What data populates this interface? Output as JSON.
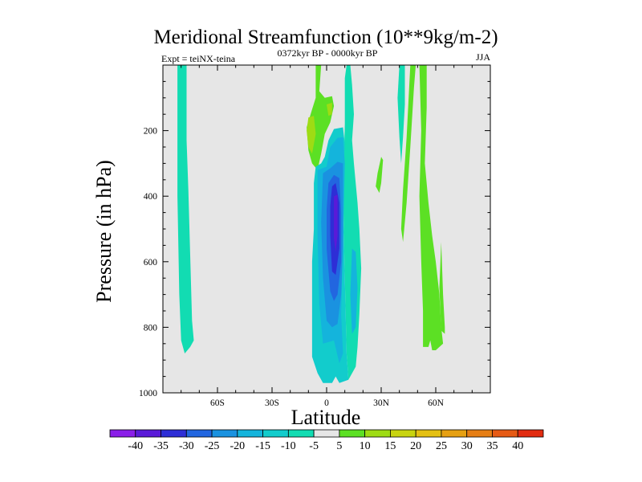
{
  "chart_data": {
    "type": "filled-contour",
    "title": "Meridional Streamfunction (10**9kg/m-2)",
    "left_label": "Expt = teiNX-teina",
    "center_label": "0372kyr BP - 0000kyr BP",
    "right_label": "JJA",
    "xlabel": "Latitude",
    "ylabel": "Pressure (in hPa)",
    "xlim": [
      -90,
      90
    ],
    "ylim": [
      1000,
      0
    ],
    "x_ticks": [
      {
        "value": -60,
        "label": "60S"
      },
      {
        "value": -30,
        "label": "30S"
      },
      {
        "value": 0,
        "label": "0"
      },
      {
        "value": 30,
        "label": "30N"
      },
      {
        "value": 60,
        "label": "60N"
      }
    ],
    "y_ticks": [
      {
        "value": 200,
        "label": "200"
      },
      {
        "value": 400,
        "label": "400"
      },
      {
        "value": 600,
        "label": "600"
      },
      {
        "value": 800,
        "label": "800"
      },
      {
        "value": 1000,
        "label": "1000"
      }
    ],
    "colorbar": {
      "levels": [
        -40,
        -35,
        -30,
        -25,
        -20,
        -15,
        -10,
        -5,
        5,
        10,
        15,
        20,
        25,
        30,
        35,
        40
      ],
      "labels": [
        "-40",
        "-35",
        "-30",
        "-25",
        "-20",
        "-15",
        "-10",
        "-5",
        "5",
        "10",
        "15",
        "20",
        "25",
        "30",
        "35",
        "40"
      ],
      "colors": [
        "#8a1ee8",
        "#5a1ad8",
        "#2e2ed6",
        "#2266e0",
        "#1a92e0",
        "#14b4dc",
        "#12cccc",
        "#12dcb2",
        "#e6e6e6",
        "#5ce024",
        "#9edc14",
        "#c8d410",
        "#e4c012",
        "#e6a012",
        "#e67e14",
        "#e65a14",
        "#e22c10"
      ]
    },
    "background_color": "#e6e6e6",
    "regions": [
      {
        "name": "sh-polar-band",
        "class": "-5",
        "points": [
          [
            -82,
            0
          ],
          [
            -77,
            0
          ],
          [
            -77,
            230
          ],
          [
            -76,
            380
          ],
          [
            -75,
            580
          ],
          [
            -74,
            780
          ],
          [
            -73,
            840
          ],
          [
            -75,
            860
          ],
          [
            -78,
            880
          ],
          [
            -80,
            840
          ],
          [
            -81,
            700
          ],
          [
            -82,
            400
          ]
        ]
      },
      {
        "name": "nh-tropical-band",
        "class": "-5",
        "points": [
          [
            11,
            0
          ],
          [
            13,
            0
          ],
          [
            14,
            60
          ],
          [
            15,
            150
          ],
          [
            14,
            230
          ],
          [
            15,
            300
          ],
          [
            17,
            420
          ],
          [
            18,
            500
          ],
          [
            19,
            620
          ],
          [
            18,
            760
          ],
          [
            17,
            860
          ],
          [
            16,
            920
          ],
          [
            12,
            960
          ],
          [
            11,
            880
          ],
          [
            10,
            650
          ],
          [
            9,
            380
          ],
          [
            10,
            180
          ],
          [
            10,
            40
          ]
        ]
      },
      {
        "name": "nh-40n-band",
        "class": "-5",
        "points": [
          [
            40,
            0
          ],
          [
            43,
            0
          ],
          [
            43,
            120
          ],
          [
            42,
            220
          ],
          [
            41,
            300
          ],
          [
            40,
            220
          ],
          [
            39,
            100
          ]
        ]
      },
      {
        "name": "upper-positive-cell",
        "class": "5",
        "points": [
          [
            -6,
            0
          ],
          [
            -3,
            0
          ],
          [
            -4,
            80
          ],
          [
            -1,
            100
          ],
          [
            3,
            95
          ],
          [
            4,
            125
          ],
          [
            2,
            175
          ],
          [
            -1,
            210
          ],
          [
            -3,
            270
          ],
          [
            -5,
            320
          ],
          [
            -8,
            300
          ],
          [
            -10,
            260
          ],
          [
            -11,
            190
          ],
          [
            -8,
            135
          ],
          [
            -6,
            100
          ]
        ]
      },
      {
        "name": "upper-positive-core",
        "class": "10",
        "points": [
          [
            -10,
            160
          ],
          [
            -7,
            155
          ],
          [
            -6,
            210
          ],
          [
            -8,
            270
          ],
          [
            -10,
            250
          ],
          [
            -11,
            200
          ]
        ]
      },
      {
        "name": "small-positive-patch",
        "class": "10",
        "points": [
          [
            0,
            120
          ],
          [
            3,
            115
          ],
          [
            3,
            150
          ],
          [
            1,
            155
          ]
        ]
      },
      {
        "name": "main-negative-cell",
        "class": "-10",
        "points": [
          [
            -8,
            780
          ],
          [
            -8,
            600
          ],
          [
            -7,
            500
          ],
          [
            -7,
            360
          ],
          [
            -6,
            310
          ],
          [
            -3,
            300
          ],
          [
            -1,
            280
          ],
          [
            1,
            230
          ],
          [
            4,
            195
          ],
          [
            9,
            190
          ],
          [
            10,
            240
          ],
          [
            9,
            380
          ],
          [
            10,
            650
          ],
          [
            11,
            880
          ],
          [
            12,
            960
          ],
          [
            7,
            970
          ],
          [
            5,
            950
          ],
          [
            3,
            970
          ],
          [
            -2,
            970
          ],
          [
            -5,
            940
          ],
          [
            -8,
            890
          ]
        ]
      },
      {
        "name": "negative-cell-15",
        "class": "-15",
        "points": [
          [
            -5,
            320
          ],
          [
            0,
            310
          ],
          [
            2,
            250
          ],
          [
            6,
            222
          ],
          [
            9,
            220
          ],
          [
            10,
            300
          ],
          [
            9,
            550
          ],
          [
            8,
            760
          ],
          [
            9,
            880
          ],
          [
            7,
            910
          ],
          [
            4,
            840
          ],
          [
            -2,
            850
          ],
          [
            -4,
            730
          ],
          [
            -5,
            520
          ]
        ]
      },
      {
        "name": "negative-cell-20",
        "class": "-20",
        "points": [
          [
            -2,
            330
          ],
          [
            2,
            315
          ],
          [
            6,
            295
          ],
          [
            9,
            300
          ],
          [
            9,
            550
          ],
          [
            8,
            700
          ],
          [
            6,
            790
          ],
          [
            3,
            800
          ],
          [
            0,
            780
          ],
          [
            -2,
            650
          ],
          [
            -3,
            480
          ]
        ]
      },
      {
        "name": "negative-cell-25",
        "class": "-25",
        "points": [
          [
            1,
            360
          ],
          [
            4,
            335
          ],
          [
            7,
            345
          ],
          [
            8,
            450
          ],
          [
            8,
            600
          ],
          [
            6,
            700
          ],
          [
            4,
            720
          ],
          [
            2,
            690
          ],
          [
            0,
            560
          ],
          [
            0,
            440
          ]
        ]
      },
      {
        "name": "negative-cell-30",
        "class": "-30",
        "points": [
          [
            3,
            370
          ],
          [
            5,
            360
          ],
          [
            7,
            420
          ],
          [
            7,
            560
          ],
          [
            5,
            640
          ],
          [
            3,
            630
          ],
          [
            2,
            520
          ],
          [
            2,
            430
          ]
        ]
      },
      {
        "name": "negative-cell-35",
        "class": "-35",
        "points": [
          [
            4,
            400
          ],
          [
            6,
            395
          ],
          [
            6,
            520
          ],
          [
            5,
            570
          ],
          [
            4,
            530
          ]
        ]
      },
      {
        "name": "nh-tropical-core",
        "class": "-15",
        "points": [
          [
            14,
            560
          ],
          [
            16,
            570
          ],
          [
            17,
            680
          ],
          [
            16,
            800
          ],
          [
            14,
            820
          ],
          [
            13,
            700
          ]
        ]
      },
      {
        "name": "positive-sliver-30n",
        "class": "5",
        "points": [
          [
            30,
            280
          ],
          [
            31,
            290
          ],
          [
            30,
            360
          ],
          [
            29,
            390
          ],
          [
            27,
            370
          ],
          [
            28,
            330
          ]
        ]
      },
      {
        "name": "positive-band-40n",
        "class": "5",
        "points": [
          [
            46,
            0
          ],
          [
            49,
            0
          ],
          [
            48,
            70
          ],
          [
            46,
            250
          ],
          [
            44,
            420
          ],
          [
            42,
            540
          ],
          [
            41,
            500
          ],
          [
            42,
            380
          ],
          [
            44,
            220
          ]
        ]
      },
      {
        "name": "positive-band-50n",
        "class": "5",
        "points": [
          [
            51,
            0
          ],
          [
            55,
            0
          ],
          [
            55,
            130
          ],
          [
            54,
            300
          ],
          [
            56,
            420
          ],
          [
            58,
            520
          ],
          [
            60,
            600
          ],
          [
            62,
            700
          ],
          [
            63,
            800
          ],
          [
            64,
            850
          ],
          [
            60,
            870
          ],
          [
            58,
            870
          ],
          [
            57,
            840
          ],
          [
            56,
            860
          ],
          [
            53,
            860
          ],
          [
            53,
            750
          ],
          [
            52,
            600
          ],
          [
            51,
            400
          ],
          [
            52,
            200
          ]
        ]
      },
      {
        "name": "positive-right-lobe",
        "class": "5",
        "points": [
          [
            63,
            540
          ],
          [
            64,
            700
          ],
          [
            65,
            800
          ],
          [
            65,
            820
          ],
          [
            63,
            810
          ],
          [
            62,
            680
          ]
        ]
      }
    ]
  }
}
